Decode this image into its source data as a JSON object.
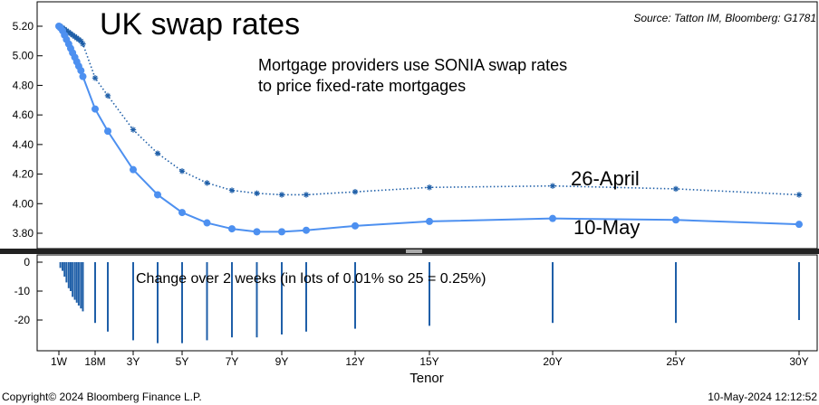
{
  "chart_data": [
    {
      "type": "line",
      "title": "UK swap rates",
      "source": "Source: Tatton IM, Bloomberg: G1781",
      "annotation_line1": "Mortgage providers use SONIA swap rates",
      "annotation_line2": "to price fixed-rate mortgages",
      "ylim": [
        3.72,
        5.26
      ],
      "yticks": [
        "5.20",
        "5.00",
        "4.80",
        "4.60",
        "4.40",
        "4.20",
        "4.00",
        "3.80"
      ],
      "series": [
        {
          "name": "26-April",
          "color": "#1f5fa8",
          "style": "dotted-star",
          "points": [
            [
              0.02,
              5.2
            ],
            [
              0.04,
              5.2
            ],
            [
              0.06,
              5.2
            ],
            [
              0.08,
              5.2
            ],
            [
              0.17,
              5.19
            ],
            [
              0.25,
              5.18
            ],
            [
              0.33,
              5.17
            ],
            [
              0.42,
              5.16
            ],
            [
              0.5,
              5.15
            ],
            [
              0.58,
              5.14
            ],
            [
              0.67,
              5.13
            ],
            [
              0.75,
              5.12
            ],
            [
              0.83,
              5.11
            ],
            [
              0.92,
              5.1
            ],
            [
              1.0,
              5.08
            ],
            [
              1.5,
              4.85
            ],
            [
              2,
              4.73
            ],
            [
              3,
              4.5
            ],
            [
              4,
              4.34
            ],
            [
              5,
              4.22
            ],
            [
              6,
              4.14
            ],
            [
              7,
              4.09
            ],
            [
              8,
              4.07
            ],
            [
              9,
              4.06
            ],
            [
              10,
              4.06
            ],
            [
              12,
              4.08
            ],
            [
              15,
              4.11
            ],
            [
              20,
              4.12
            ],
            [
              25,
              4.1
            ],
            [
              30,
              4.06
            ]
          ]
        },
        {
          "name": "10-May",
          "color": "#4d90f0",
          "style": "solid-dot",
          "points": [
            [
              0.02,
              5.2
            ],
            [
              0.08,
              5.19
            ],
            [
              0.17,
              5.17
            ],
            [
              0.25,
              5.14
            ],
            [
              0.33,
              5.11
            ],
            [
              0.42,
              5.08
            ],
            [
              0.5,
              5.05
            ],
            [
              0.58,
              5.02
            ],
            [
              0.67,
              4.99
            ],
            [
              0.75,
              4.96
            ],
            [
              0.83,
              4.93
            ],
            [
              0.92,
              4.9
            ],
            [
              1.0,
              4.86
            ],
            [
              1.5,
              4.64
            ],
            [
              2,
              4.49
            ],
            [
              3,
              4.23
            ],
            [
              4,
              4.06
            ],
            [
              5,
              3.94
            ],
            [
              6,
              3.87
            ],
            [
              7,
              3.83
            ],
            [
              8,
              3.81
            ],
            [
              9,
              3.81
            ],
            [
              10,
              3.82
            ],
            [
              12,
              3.85
            ],
            [
              15,
              3.88
            ],
            [
              20,
              3.9
            ],
            [
              25,
              3.89
            ],
            [
              30,
              3.86
            ]
          ]
        }
      ]
    },
    {
      "type": "bar",
      "annotation": "Change over 2 weeks (in lots of 0.01% so 25 = 0.25%)",
      "ylim": [
        -30,
        2
      ],
      "yticks": [
        "0",
        "-10",
        "-20"
      ],
      "color": "#1f5fa8",
      "points": [
        [
          0.08,
          -2
        ],
        [
          0.17,
          -3
        ],
        [
          0.25,
          -5
        ],
        [
          0.33,
          -7
        ],
        [
          0.42,
          -9
        ],
        [
          0.5,
          -10
        ],
        [
          0.58,
          -12
        ],
        [
          0.67,
          -13
        ],
        [
          0.75,
          -14
        ],
        [
          0.83,
          -15
        ],
        [
          0.92,
          -16
        ],
        [
          1.0,
          -17
        ],
        [
          1.5,
          -21
        ],
        [
          2,
          -24
        ],
        [
          3,
          -27
        ],
        [
          4,
          -28
        ],
        [
          5,
          -28
        ],
        [
          6,
          -27
        ],
        [
          7,
          -26
        ],
        [
          8,
          -26
        ],
        [
          9,
          -25
        ],
        [
          10,
          -24
        ],
        [
          12,
          -23
        ],
        [
          15,
          -22
        ],
        [
          20,
          -21
        ],
        [
          25,
          -21
        ],
        [
          30,
          -20
        ]
      ]
    }
  ],
  "xaxis": {
    "title": "Tenor",
    "ticks": [
      {
        "label": "1W",
        "v": 0.02
      },
      {
        "label": "18M",
        "v": 1.5
      },
      {
        "label": "3Y",
        "v": 3
      },
      {
        "label": "5Y",
        "v": 5
      },
      {
        "label": "7Y",
        "v": 7
      },
      {
        "label": "9Y",
        "v": 9
      },
      {
        "label": "12Y",
        "v": 12
      },
      {
        "label": "15Y",
        "v": 15
      },
      {
        "label": "20Y",
        "v": 20
      },
      {
        "label": "25Y",
        "v": 25
      },
      {
        "label": "30Y",
        "v": 30
      }
    ]
  },
  "footer": {
    "copyright": "Copyright© 2024 Bloomberg Finance L.P.",
    "timestamp": "10-May-2024 12:12:52"
  }
}
